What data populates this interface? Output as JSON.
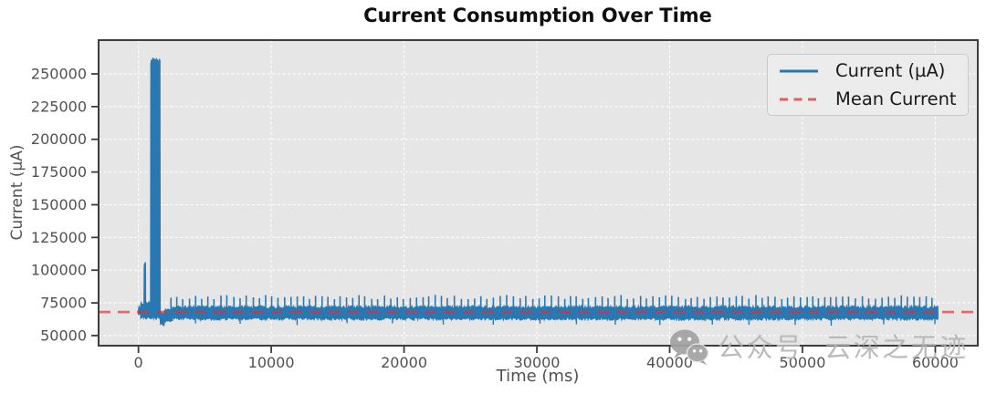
{
  "chart_data": {
    "type": "line",
    "title": "Current Consumption Over Time",
    "xlabel": "Time (ms)",
    "ylabel": "Current (µA)",
    "xlim": [
      -3000,
      63200
    ],
    "ylim": [
      42300,
      275800
    ],
    "x_ticks": [
      0,
      10000,
      20000,
      30000,
      40000,
      50000,
      60000
    ],
    "y_ticks": [
      50000,
      75000,
      100000,
      125000,
      150000,
      175000,
      200000,
      225000,
      250000
    ],
    "grid": {
      "shown": true,
      "style": "dashed",
      "color": "#ffffff"
    },
    "legend_position": "upper right",
    "legend": {
      "entries": [
        {
          "label": "Current (µA)",
          "color": "#2878b4",
          "line_style": "solid"
        },
        {
          "label": "Mean Current",
          "color": "#e62d2d",
          "line_style": "dashed"
        }
      ]
    },
    "mean_current": 68000,
    "series": [
      {
        "name": "Current (µA)",
        "color": "#2878b4",
        "t_start_ms": 0,
        "t_end_ms": 60200,
        "summary": "Noisy current trace: brief pre-spike to ~105000 µA near t=500 ms, large startup spike ~258000-262000 µA from ~930 to ~1650 ms, short sag to ~58000 µA after it, then a steady noise band ~62900-71600 µA with periodic spikes to ~78000-81000 µA about every 480 ms out to 60200 ms. Mean ~68000 µA.",
        "band_segments": [
          {
            "t0": 0,
            "t1": 170,
            "top": 71200,
            "bottom": 66600,
            "jt": 1600,
            "jb": 900,
            "step": 40
          },
          {
            "t0": 170,
            "t1": 430,
            "top": 74800,
            "bottom": 63800,
            "jt": 2000,
            "jb": 1000,
            "step": 40
          },
          {
            "t0": 430,
            "t1": 545,
            "top": 104800,
            "bottom": 64000,
            "jt": 2800,
            "jb": 1000,
            "step": 22
          },
          {
            "t0": 545,
            "t1": 925,
            "top": 75200,
            "bottom": 63900,
            "jt": 1700,
            "jb": 1000,
            "step": 40
          },
          {
            "t0": 925,
            "t1": 1650,
            "top": 259800,
            "bottom": 63500,
            "jt": 2600,
            "jb": 1000,
            "step": 22
          },
          {
            "t0": 1650,
            "t1": 1960,
            "top": 66800,
            "bottom": 58600,
            "jt": 1000,
            "jb": 1400,
            "step": 40
          },
          {
            "t0": 1960,
            "t1": 2560,
            "top": 69600,
            "bottom": 61400,
            "jt": 1000,
            "jb": 1000,
            "step": 40
          },
          {
            "t0": 2560,
            "t1": 60200,
            "top": 71600,
            "bottom": 62900,
            "jt": 1300,
            "jb": 1200,
            "step": 55
          }
        ],
        "periodic_spikes": {
          "t_start": 2450,
          "t_end": 60140,
          "period": 480,
          "period_jitter": 60,
          "peak_min": 77800,
          "peak_max": 81200,
          "base": 70500
        },
        "down_dips": {
          "t_start": 4300,
          "t_end": 60150,
          "period": 3600,
          "period_jitter": 900,
          "depth_min": 57600,
          "depth_max": 59800,
          "base": 63600
        }
      }
    ]
  },
  "colors": {
    "plot_background": "#e6e6e6",
    "grid": "#ffffff",
    "frame": "#3d3d3d",
    "tick_text": "#515151",
    "series_line": "#2878b4",
    "mean_line": "#e62d2d",
    "title_text": "#0f0f0f",
    "legend_background": "#ececec",
    "watermark_gray": "#b5b5b5"
  },
  "watermark": {
    "text": "公众号 云深之无迹",
    "icon": "wechat-icon",
    "color": "#b5b5b5"
  }
}
